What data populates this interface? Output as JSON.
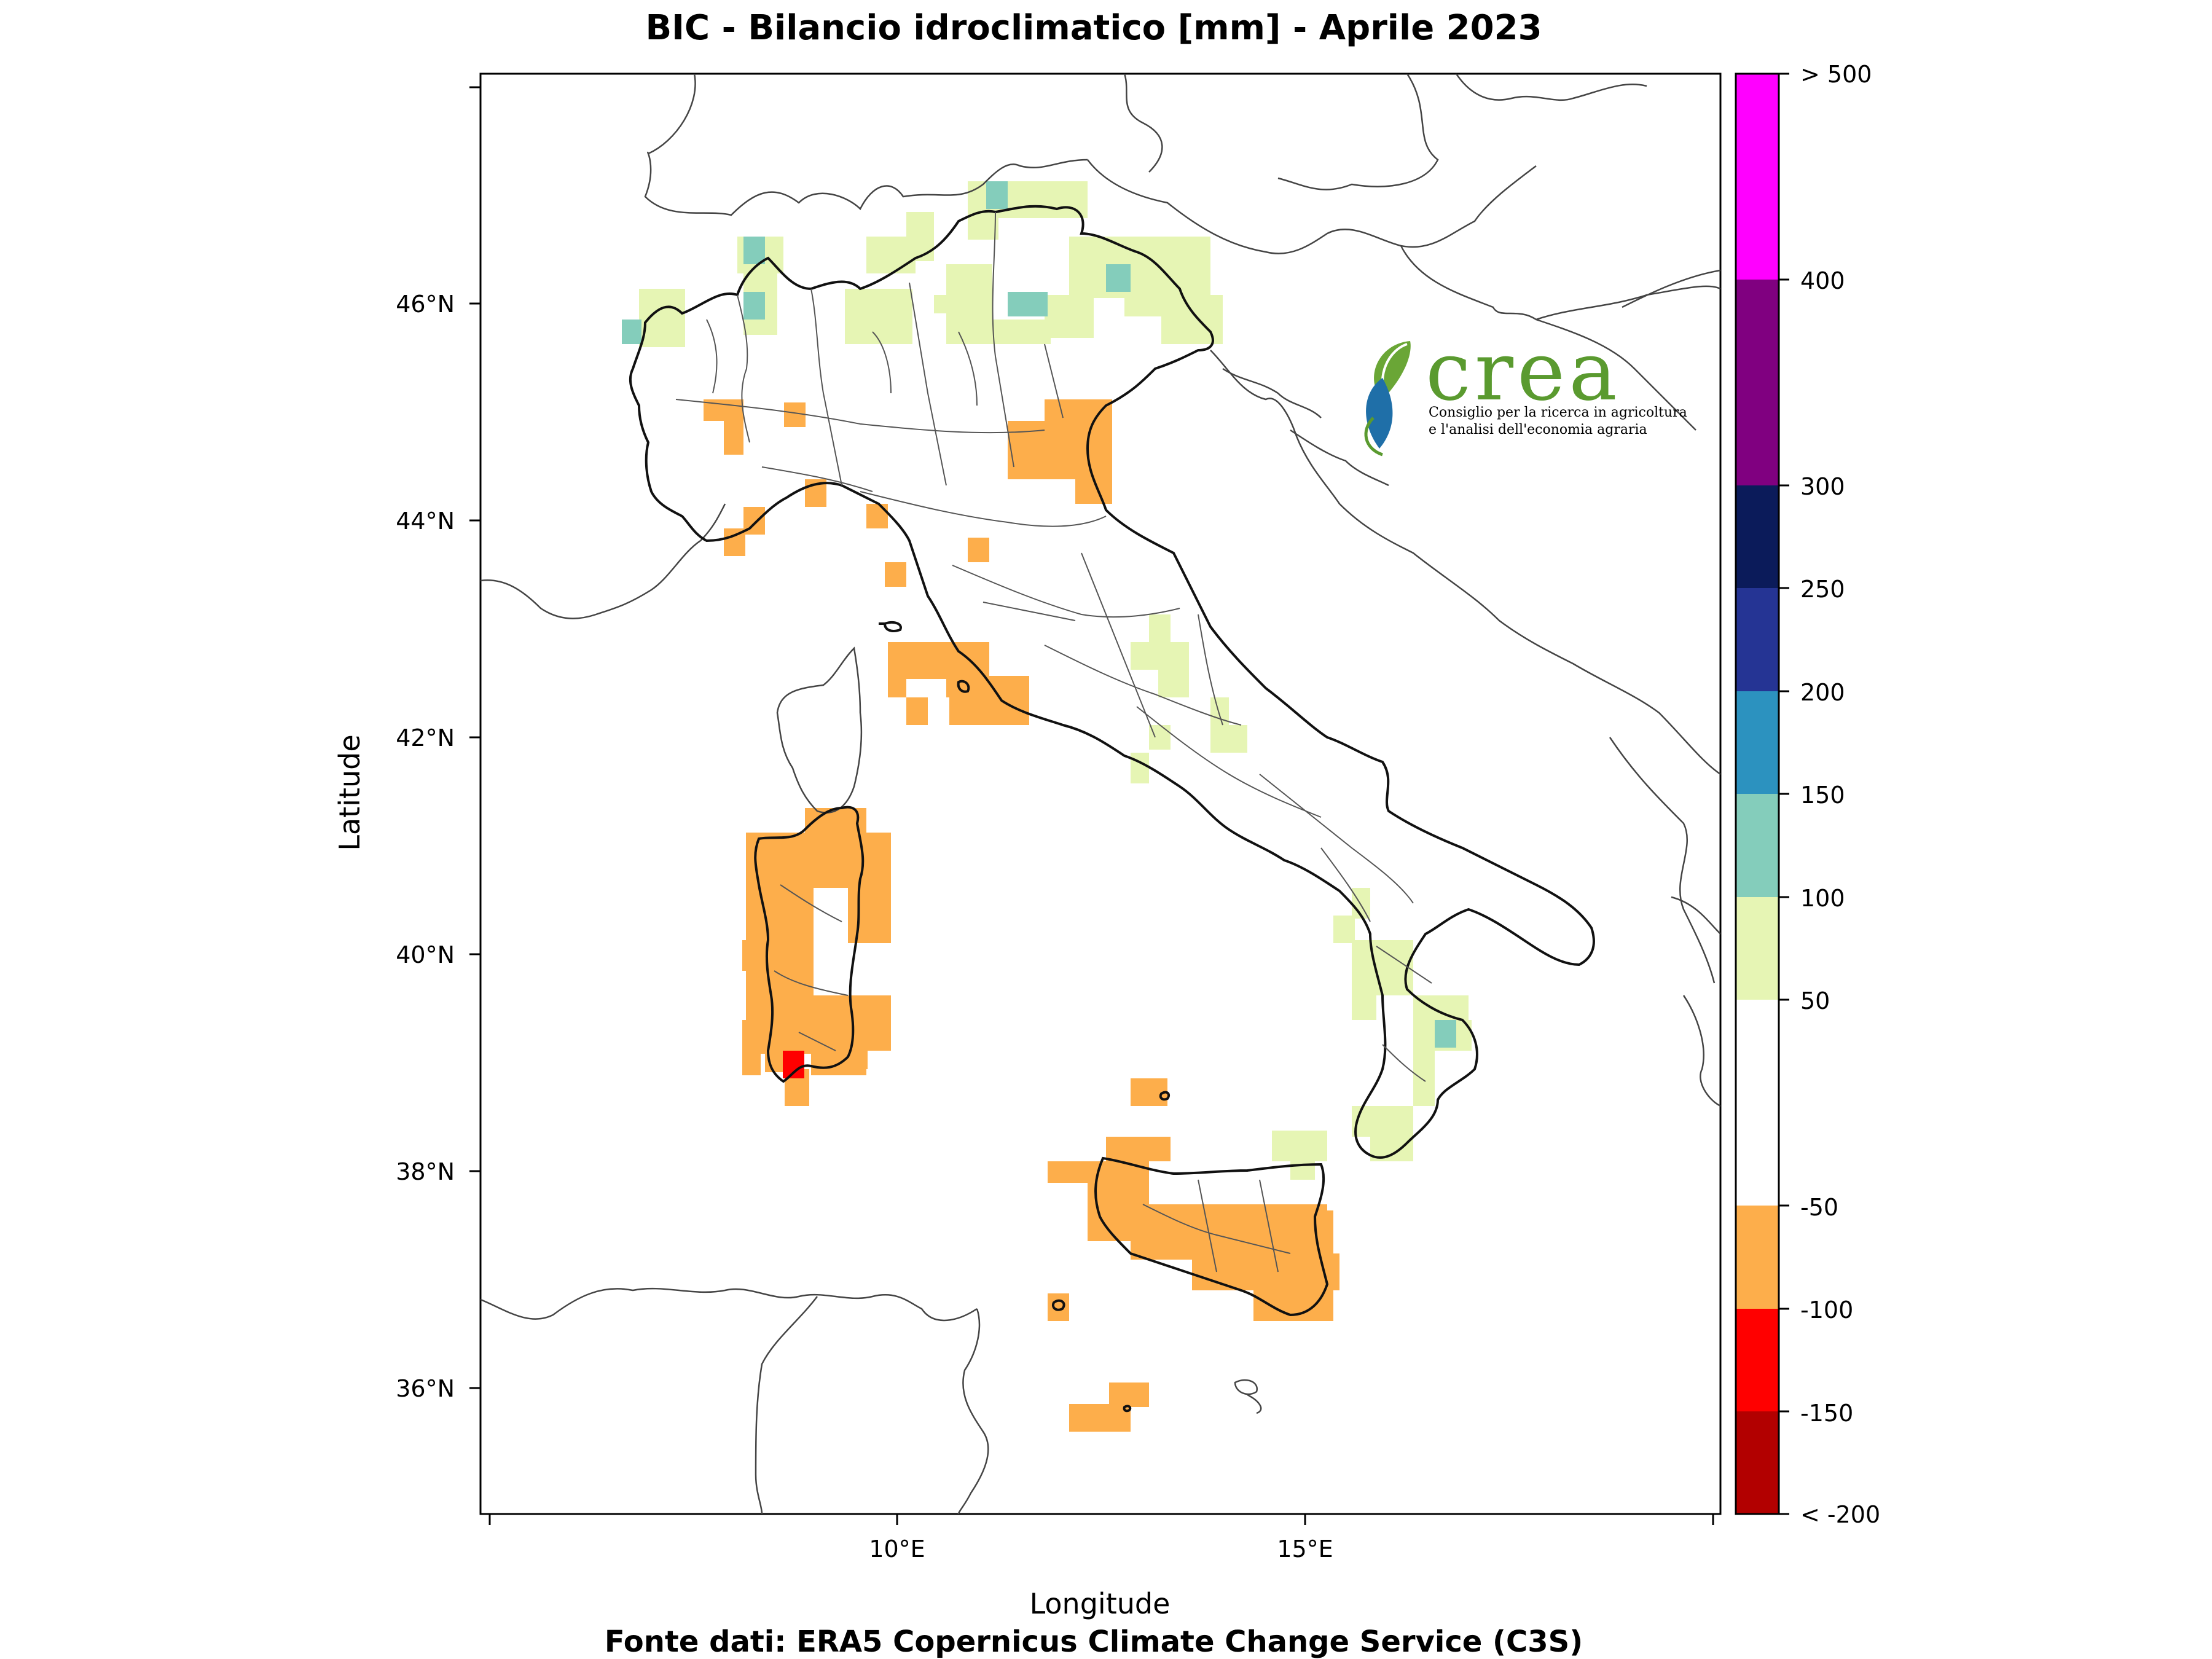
{
  "title": "BIC - Bilancio idroclimatico [mm] - Aprile 2023",
  "source": "Fonte dati: ERA5 Copernicus Climate Change Service (C3S)",
  "axes": {
    "xlabel": "Longitude",
    "ylabel": "Latitude",
    "xticks": [
      "10°E",
      "15°E"
    ],
    "yticks": [
      "46°N",
      "44°N",
      "42°N",
      "40°N",
      "38°N",
      "36°N"
    ]
  },
  "logo": {
    "name": "crea",
    "line1": "Consiglio per la ricerca in agricoltura",
    "line2": "e l'analisi dell'economia agraria"
  },
  "colorbar": {
    "labels": [
      "> 500",
      "400",
      "300",
      "250",
      "200",
      "150",
      "100",
      "50",
      "-50",
      "-100",
      "-150",
      "< -200"
    ],
    "classes": [
      {
        "range": "400 – 500",
        "color": "#ff00ff"
      },
      {
        "range": "300 – 400",
        "color": "#800080"
      },
      {
        "range": "250 – 300",
        "color": "#0b1b5a"
      },
      {
        "range": "200 – 250",
        "color": "#253494"
      },
      {
        "range": "150 – 200",
        "color": "#2c92bf"
      },
      {
        "range": "100 – 150",
        "color": "#84cdbb"
      },
      {
        "range": "50 – 100",
        "color": "#e6f5b4"
      },
      {
        "range": "-50 – 50",
        "color": "#ffffff"
      },
      {
        "range": "-100 – -50",
        "color": "#fdae4b"
      },
      {
        "range": "-150 – -100",
        "color": "#ff0000"
      },
      {
        "range": "-200 – -150",
        "color": "#b20000"
      }
    ]
  },
  "legend_colors": {
    "orange": "#fdae4b",
    "light_green": "#e6f5b4",
    "teal": "#84cdbb",
    "red": "#ff0000",
    "logo_green": "#5a9a2f",
    "logo_blue": "#1f6fa8"
  }
}
